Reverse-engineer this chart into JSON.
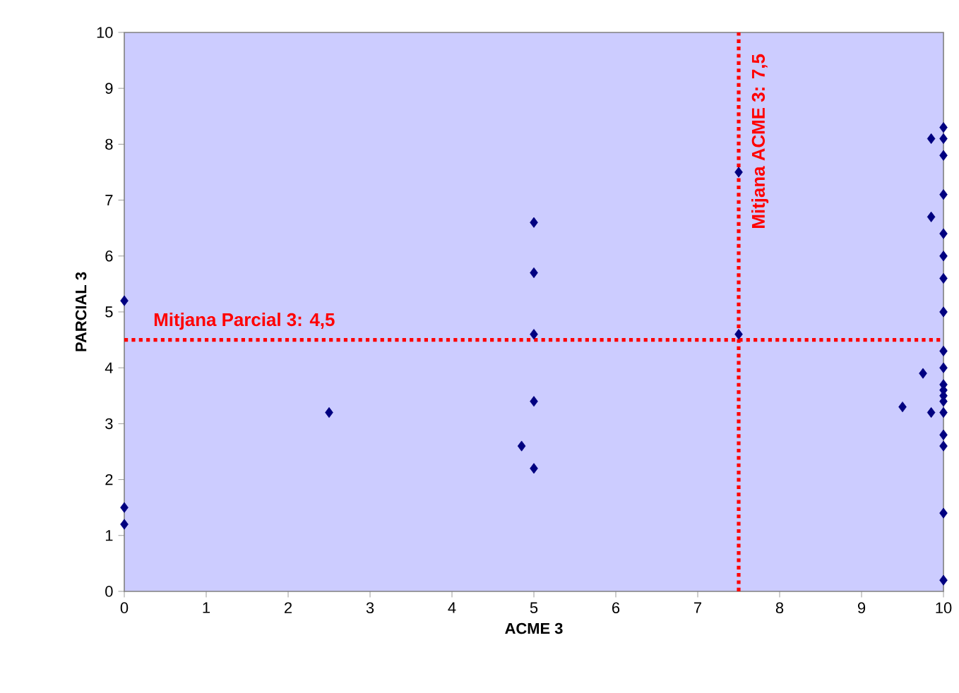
{
  "chart_data": {
    "type": "scatter",
    "xlabel": "ACME 3",
    "ylabel": "PARCIAL 3",
    "xlim": [
      0,
      10
    ],
    "ylim": [
      0,
      10
    ],
    "xticks": [
      0,
      1,
      2,
      3,
      4,
      5,
      6,
      7,
      8,
      9,
      10
    ],
    "yticks": [
      0,
      1,
      2,
      3,
      4,
      5,
      6,
      7,
      8,
      9,
      10
    ],
    "marker": "diamond",
    "series": [
      {
        "color": "#000080",
        "x": [
          0,
          0,
          0,
          2.5,
          4.85,
          5,
          5,
          5,
          5,
          5,
          7.5,
          7.5,
          9.5,
          9.75,
          9.85,
          9.85,
          9.85,
          10,
          10,
          10,
          10,
          10,
          10,
          10,
          10,
          10,
          10,
          10,
          10,
          10,
          10,
          10,
          10,
          10,
          10,
          10
        ],
        "values": [
          5.2,
          1.5,
          1.2,
          3.2,
          2.6,
          2.2,
          3.4,
          4.6,
          5.7,
          6.6,
          7.5,
          4.6,
          3.3,
          3.9,
          3.2,
          6.7,
          8.1,
          8.3,
          8.1,
          7.8,
          7.1,
          6.4,
          6.0,
          5.6,
          5.0,
          4.3,
          4.0,
          3.7,
          3.6,
          3.4,
          3.2,
          2.8,
          2.6,
          1.4,
          0.2,
          3.5
        ]
      }
    ],
    "ref_lines": [
      {
        "axis": "y",
        "value": 4.5,
        "label": "Mitjana Parcial 3: 4,5",
        "color": "#ff0000",
        "line_style": "dotted"
      },
      {
        "axis": "x",
        "value": 7.5,
        "label": "Mitjana ACME 3: 7,5",
        "color": "#ff0000",
        "line_style": "dotted"
      }
    ]
  }
}
